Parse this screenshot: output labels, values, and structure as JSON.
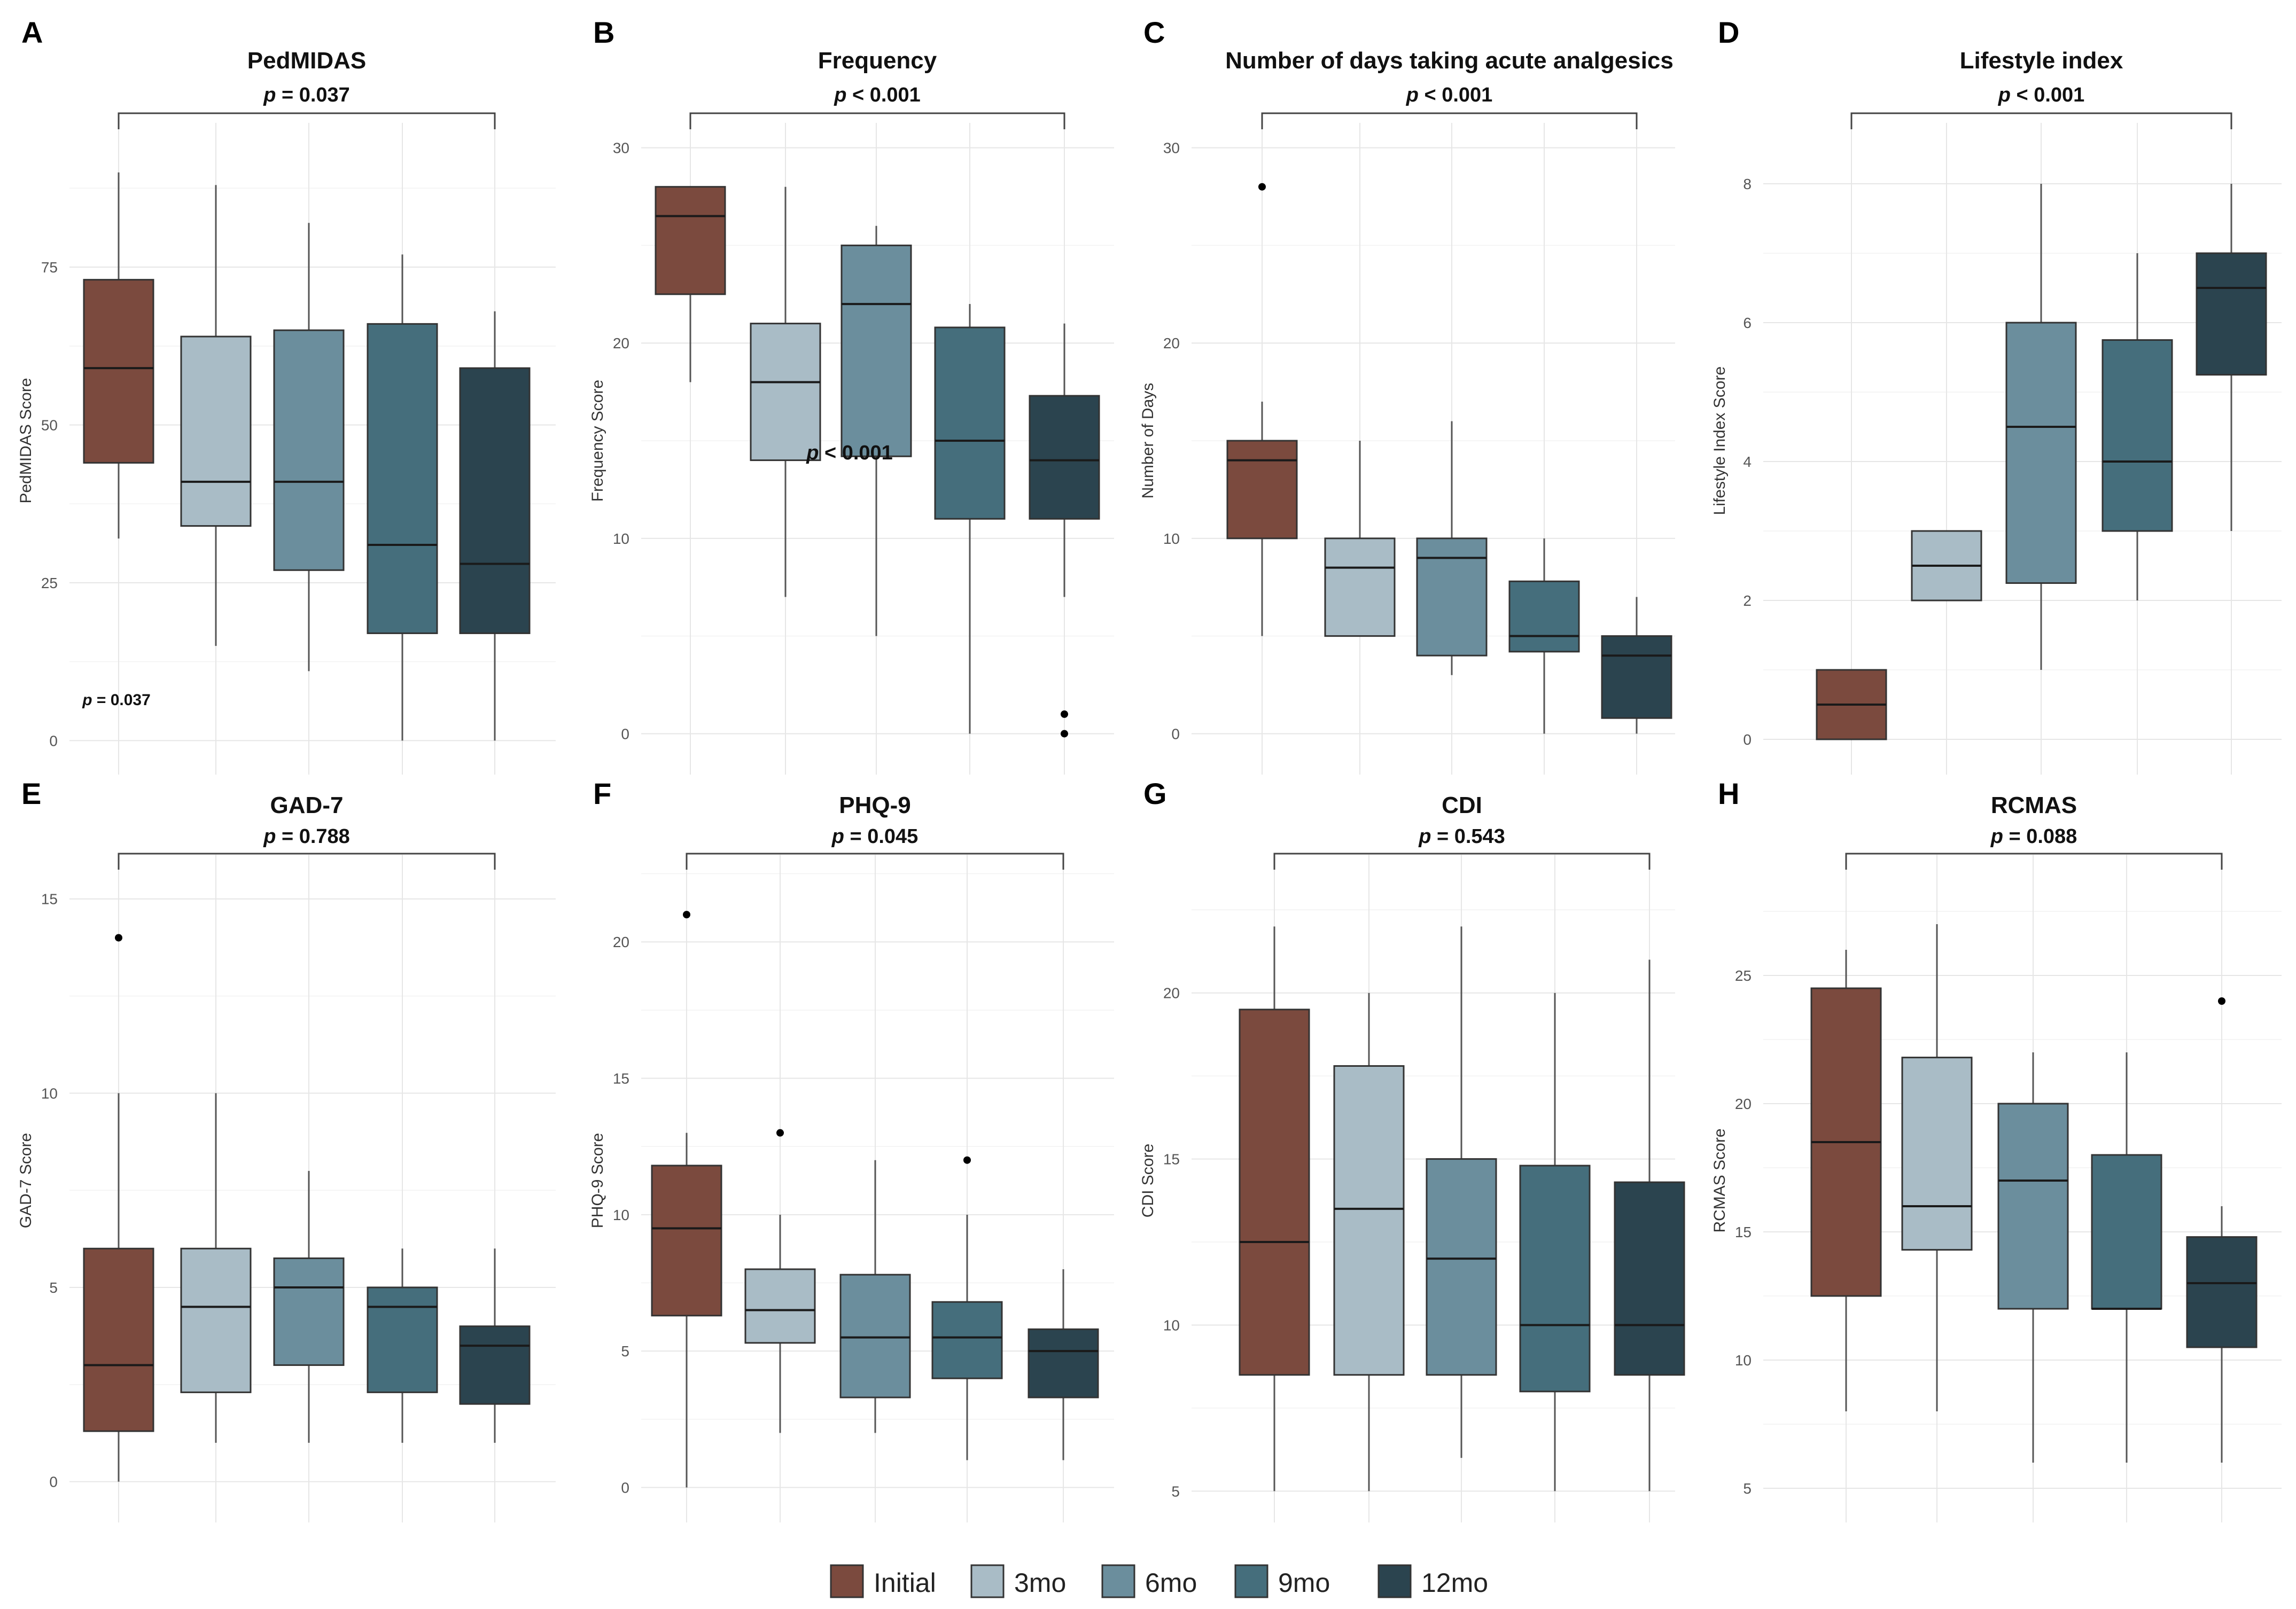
{
  "legend": {
    "items": [
      {
        "label": "Initial",
        "color": "#7b4a3e"
      },
      {
        "label": "3mo",
        "color": "#a9bcc6"
      },
      {
        "label": "6mo",
        "color": "#6b8e9d"
      },
      {
        "label": "9mo",
        "color": "#456e7c"
      },
      {
        "label": "12mo",
        "color": "#2b444f"
      }
    ]
  },
  "chart_data": [
    {
      "type": "boxplot",
      "panel": "A",
      "title": "PedMIDAS",
      "ylabel": "PedMIDAS Score",
      "ylim": [
        -2,
        97
      ],
      "yticks": [
        0,
        25,
        50,
        75
      ],
      "categories": [
        "Initial",
        "3mo",
        "6mo",
        "9mo",
        "12mo"
      ],
      "boxes": [
        {
          "min": 32,
          "q1": 44,
          "median": 59,
          "q3": 73,
          "max": 90,
          "outliers": []
        },
        {
          "min": 15,
          "q1": 34,
          "median": 41,
          "q3": 64,
          "max": 88,
          "outliers": []
        },
        {
          "min": 11,
          "q1": 27,
          "median": 41,
          "q3": 65,
          "max": 82,
          "outliers": []
        },
        {
          "min": 0,
          "q1": 17,
          "median": 31,
          "q3": 66,
          "max": 77,
          "outliers": []
        },
        {
          "min": 0,
          "q1": 17,
          "median": 28,
          "q3": 59,
          "max": 68,
          "outliers": []
        }
      ],
      "bracket_label": "p = 0.037",
      "extra_annotation": "p = 0.037"
    },
    {
      "type": "boxplot",
      "panel": "B",
      "title": "Frequency",
      "ylabel": "Frequency Score",
      "ylim": [
        -1,
        31
      ],
      "yticks": [
        0,
        10,
        20,
        30
      ],
      "categories": [
        "Initial",
        "3mo",
        "6mo",
        "9mo",
        "12mo"
      ],
      "boxes": [
        {
          "min": 18,
          "q1": 22.5,
          "median": 26.5,
          "q3": 28,
          "max": 28,
          "outliers": []
        },
        {
          "min": 7,
          "q1": 14,
          "median": 18,
          "q3": 21,
          "max": 28,
          "outliers": []
        },
        {
          "min": 5,
          "q1": 14.2,
          "median": 22,
          "q3": 25,
          "max": 26,
          "outliers": []
        },
        {
          "min": 0,
          "q1": 11,
          "median": 15,
          "q3": 20.8,
          "max": 22,
          "outliers": []
        },
        {
          "min": 7,
          "q1": 11,
          "median": 14,
          "q3": 17.3,
          "max": 21,
          "outliers": [
            0,
            1
          ]
        }
      ],
      "bracket_label": "p < 0.001",
      "extra_annotation": "p < 0.001"
    },
    {
      "type": "boxplot",
      "panel": "C",
      "title": "Number of days taking acute analgesics",
      "ylabel": "Number of Days",
      "ylim": [
        -1,
        31
      ],
      "yticks": [
        0,
        10,
        20,
        30
      ],
      "categories": [
        "Initial",
        "3mo",
        "6mo",
        "9mo",
        "12mo"
      ],
      "boxes": [
        {
          "min": 5,
          "q1": 10,
          "median": 14,
          "q3": 15,
          "max": 17,
          "outliers": [
            28
          ]
        },
        {
          "min": 5,
          "q1": 5,
          "median": 8.5,
          "q3": 10,
          "max": 15,
          "outliers": []
        },
        {
          "min": 3,
          "q1": 4,
          "median": 9,
          "q3": 10,
          "max": 16,
          "outliers": []
        },
        {
          "min": 0,
          "q1": 4.2,
          "median": 5,
          "q3": 7.8,
          "max": 10,
          "outliers": []
        },
        {
          "min": 0,
          "q1": 0.8,
          "median": 4,
          "q3": 5,
          "max": 7,
          "outliers": []
        }
      ],
      "bracket_label": "p < 0.001"
    },
    {
      "type": "boxplot",
      "panel": "D",
      "title": "Lifestyle index",
      "ylabel": "Lifestyle Index Score",
      "ylim": [
        -0.2,
        8.8
      ],
      "yticks": [
        0,
        2,
        4,
        6,
        8
      ],
      "categories": [
        "Initial",
        "3mo",
        "6mo",
        "9mo",
        "12mo"
      ],
      "boxes": [
        {
          "min": 0,
          "q1": 0,
          "median": 0.5,
          "q3": 1,
          "max": 1,
          "outliers": []
        },
        {
          "min": 2,
          "q1": 2,
          "median": 2.5,
          "q3": 3,
          "max": 3,
          "outliers": []
        },
        {
          "min": 1,
          "q1": 2.25,
          "median": 4.5,
          "q3": 6,
          "max": 8,
          "outliers": []
        },
        {
          "min": 2,
          "q1": 3,
          "median": 4,
          "q3": 5.75,
          "max": 7,
          "outliers": []
        },
        {
          "min": 3,
          "q1": 5.25,
          "median": 6.5,
          "q3": 7,
          "max": 8,
          "outliers": []
        }
      ],
      "bracket_label": "p < 0.001"
    },
    {
      "type": "boxplot",
      "panel": "E",
      "title": "GAD-7",
      "ylabel": "GAD-7 Score",
      "ylim": [
        -0.5,
        16
      ],
      "yticks": [
        0,
        5,
        10,
        15
      ],
      "categories": [
        "Initial",
        "3mo",
        "6mo",
        "9mo",
        "12mo"
      ],
      "boxes": [
        {
          "min": 0,
          "q1": 1.3,
          "median": 3,
          "q3": 6,
          "max": 10,
          "outliers": [
            14
          ]
        },
        {
          "min": 1,
          "q1": 2.3,
          "median": 4.5,
          "q3": 6,
          "max": 10,
          "outliers": []
        },
        {
          "min": 1,
          "q1": 3,
          "median": 5,
          "q3": 5.75,
          "max": 8,
          "outliers": []
        },
        {
          "min": 1,
          "q1": 2.3,
          "median": 4.5,
          "q3": 5,
          "max": 6,
          "outliers": []
        },
        {
          "min": 1,
          "q1": 2,
          "median": 3.5,
          "q3": 4,
          "max": 6,
          "outliers": []
        }
      ],
      "bracket_label": "p = 0.788"
    },
    {
      "type": "boxplot",
      "panel": "F",
      "title": "PHQ-9",
      "ylabel": "PHQ-9 Score",
      "ylim": [
        -0.5,
        23
      ],
      "yticks": [
        0,
        5,
        10,
        15,
        20
      ],
      "categories": [
        "Initial",
        "3mo",
        "6mo",
        "9mo",
        "12mo"
      ],
      "boxes": [
        {
          "min": 0,
          "q1": 6.3,
          "median": 9.5,
          "q3": 11.8,
          "max": 13,
          "outliers": [
            21
          ]
        },
        {
          "min": 2,
          "q1": 5.3,
          "median": 6.5,
          "q3": 8,
          "max": 10,
          "outliers": [
            13
          ]
        },
        {
          "min": 2,
          "q1": 3.3,
          "median": 5.5,
          "q3": 7.8,
          "max": 12,
          "outliers": []
        },
        {
          "min": 1,
          "q1": 4,
          "median": 5.5,
          "q3": 6.8,
          "max": 10,
          "outliers": [
            12
          ]
        },
        {
          "min": 1,
          "q1": 3.3,
          "median": 5,
          "q3": 5.8,
          "max": 8,
          "outliers": []
        }
      ],
      "bracket_label": "p = 0.045"
    },
    {
      "type": "boxplot",
      "panel": "G",
      "title": "CDI",
      "ylabel": "CDI Score",
      "ylim": [
        4.7,
        24
      ],
      "yticks": [
        5,
        10,
        15,
        20
      ],
      "categories": [
        "Initial",
        "3mo",
        "6mo",
        "9mo",
        "12mo"
      ],
      "boxes": [
        {
          "min": 5,
          "q1": 8.5,
          "median": 12.5,
          "q3": 19.5,
          "max": 22,
          "outliers": []
        },
        {
          "min": 5,
          "q1": 8.5,
          "median": 13.5,
          "q3": 17.8,
          "max": 20,
          "outliers": []
        },
        {
          "min": 6,
          "q1": 8.5,
          "median": 12,
          "q3": 15,
          "max": 22,
          "outliers": []
        },
        {
          "min": 5,
          "q1": 8,
          "median": 10,
          "q3": 14.8,
          "max": 20,
          "outliers": []
        },
        {
          "min": 5,
          "q1": 8.5,
          "median": 10,
          "q3": 14.3,
          "max": 21,
          "outliers": []
        }
      ],
      "bracket_label": "p = 0.543"
    },
    {
      "type": "boxplot",
      "panel": "H",
      "title": "RCMAS",
      "ylabel": "RCMAS Score",
      "ylim": [
        4.5,
        29.5
      ],
      "yticks": [
        5,
        10,
        15,
        20,
        25
      ],
      "categories": [
        "Initial",
        "3mo",
        "6mo",
        "9mo",
        "12mo"
      ],
      "boxes": [
        {
          "min": 8,
          "q1": 12.5,
          "median": 18.5,
          "q3": 24.5,
          "max": 26,
          "outliers": []
        },
        {
          "min": 8,
          "q1": 14.3,
          "median": 16,
          "q3": 21.8,
          "max": 27,
          "outliers": []
        },
        {
          "min": 6,
          "q1": 12,
          "median": 17,
          "q3": 20,
          "max": 22,
          "outliers": []
        },
        {
          "min": 6,
          "q1": 12,
          "median": 12,
          "q3": 18,
          "max": 22,
          "outliers": []
        },
        {
          "min": 6,
          "q1": 10.5,
          "median": 13,
          "q3": 14.8,
          "max": 16,
          "outliers": [
            24
          ]
        }
      ],
      "bracket_label": "p = 0.088"
    }
  ]
}
